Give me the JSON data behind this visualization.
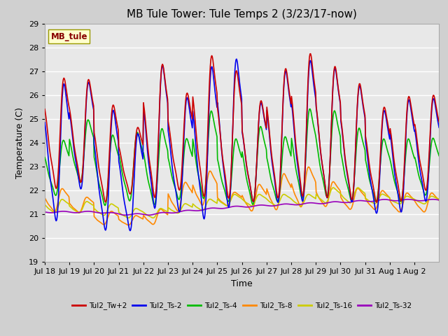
{
  "title": "MB Tule Tower: Tule Temps 2 (3/23/17-now)",
  "xlabel": "Time",
  "ylabel": "Temperature (C)",
  "ylim": [
    19.0,
    29.0
  ],
  "yticks": [
    19.0,
    20.0,
    21.0,
    22.0,
    23.0,
    24.0,
    25.0,
    26.0,
    27.0,
    28.0,
    29.0
  ],
  "xtick_labels": [
    "Jul 18",
    "Jul 19",
    "Jul 20",
    "Jul 21",
    "Jul 22",
    "Jul 23",
    "Jul 24",
    "Jul 25",
    "Jul 26",
    "Jul 27",
    "Jul 28",
    "Jul 29",
    "Jul 30",
    "Jul 31",
    "Aug 1",
    "Aug 2"
  ],
  "series_names": [
    "Tul2_Tw+2",
    "Tul2_Ts-2",
    "Tul2_Ts-4",
    "Tul2_Ts-8",
    "Tul2_Ts-16",
    "Tul2_Ts-32"
  ],
  "series_colors": [
    "#cc0000",
    "#0000ee",
    "#00bb00",
    "#ff8800",
    "#cccc00",
    "#9900bb"
  ],
  "series_lw": [
    1.2,
    1.2,
    1.2,
    1.2,
    1.2,
    1.2
  ],
  "legend_label": "MB_tule",
  "legend_facecolor": "#ffffcc",
  "legend_edgecolor": "#999900",
  "legend_textcolor": "#880000",
  "bg_color": "#e8e8e8",
  "plot_bg_color": "#e8e8e8",
  "grid_color": "#ffffff",
  "title_fontsize": 11,
  "axis_label_fontsize": 9,
  "tick_fontsize": 8
}
